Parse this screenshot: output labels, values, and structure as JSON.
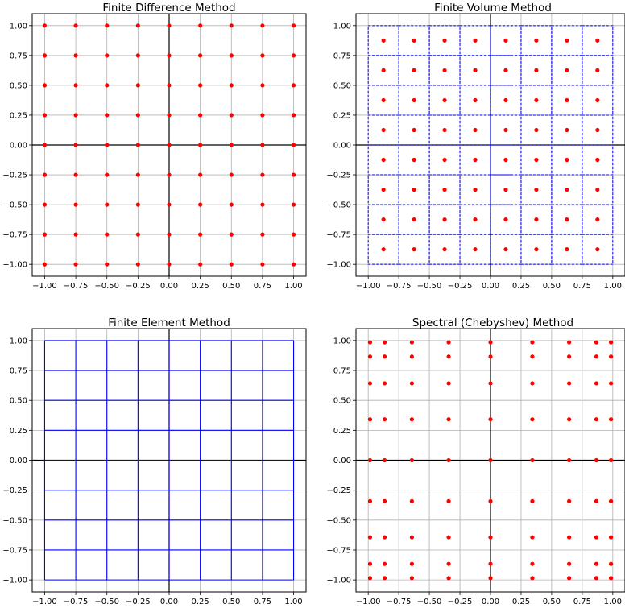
{
  "chart_data": [
    {
      "type": "scatter",
      "title": "Finite Difference Method",
      "xlim": [
        -1.1,
        1.1
      ],
      "ylim": [
        -1.1,
        1.1
      ],
      "xticks": [
        -1.0,
        -0.75,
        -0.5,
        -0.25,
        0.0,
        0.25,
        0.5,
        0.75,
        1.0
      ],
      "yticks": [
        -1.0,
        -0.75,
        -0.5,
        -0.25,
        0.0,
        0.25,
        0.5,
        0.75,
        1.0
      ],
      "xtick_labels": [
        "−1.00",
        "−0.75",
        "−0.50",
        "−0.25",
        "0.00",
        "0.25",
        "0.50",
        "0.75",
        "1.00"
      ],
      "ytick_labels": [
        "−1.00",
        "−0.75",
        "−0.50",
        "−0.25",
        "0.00",
        "0.25",
        "0.50",
        "0.75",
        "1.00"
      ],
      "grid": true,
      "axes_lines": true,
      "point_color": "#ff0000",
      "points_x": [
        -1.0,
        -0.75,
        -0.5,
        -0.25,
        0.0,
        0.25,
        0.5,
        0.75,
        1.0
      ],
      "points_y": [
        -1.0,
        -0.75,
        -0.5,
        -0.25,
        0.0,
        0.25,
        0.5,
        0.75,
        1.0
      ]
    },
    {
      "type": "scatter",
      "title": "Finite Volume Method",
      "xlim": [
        -1.1,
        1.1
      ],
      "ylim": [
        -1.1,
        1.1
      ],
      "xticks": [
        -1.0,
        -0.75,
        -0.5,
        -0.25,
        0.0,
        0.25,
        0.5,
        0.75,
        1.0
      ],
      "yticks": [
        -1.0,
        -0.75,
        -0.5,
        -0.25,
        0.0,
        0.25,
        0.5,
        0.75,
        1.0
      ],
      "xtick_labels": [
        "−1.00",
        "−0.75",
        "−0.50",
        "−0.25",
        "0.00",
        "0.25",
        "0.50",
        "0.75",
        "1.00"
      ],
      "ytick_labels": [
        "−1.00",
        "−0.75",
        "−0.50",
        "−0.25",
        "0.00",
        "0.25",
        "0.50",
        "0.75",
        "1.00"
      ],
      "grid": true,
      "axes_lines": true,
      "point_color": "#ff0000",
      "points_x": [
        -0.875,
        -0.625,
        -0.375,
        -0.125,
        0.125,
        0.375,
        0.625,
        0.875
      ],
      "points_y": [
        -0.875,
        -0.625,
        -0.375,
        -0.125,
        0.125,
        0.375,
        0.625,
        0.875
      ],
      "cell_edges": [
        -1.0,
        -0.75,
        -0.5,
        -0.25,
        0.0,
        0.25,
        0.5,
        0.75,
        1.0
      ],
      "cell_color": "#0000ff",
      "cell_style": "dashed"
    },
    {
      "type": "mesh",
      "title": "Finite Element Method",
      "xlim": [
        -1.1,
        1.1
      ],
      "ylim": [
        -1.1,
        1.1
      ],
      "xticks": [
        -1.0,
        -0.75,
        -0.5,
        -0.25,
        0.0,
        0.25,
        0.5,
        0.75,
        1.0
      ],
      "yticks": [
        -1.0,
        -0.75,
        -0.5,
        -0.25,
        0.0,
        0.25,
        0.5,
        0.75,
        1.0
      ],
      "xtick_labels": [
        "−1.00",
        "−0.75",
        "−0.50",
        "−0.25",
        "0.00",
        "0.25",
        "0.50",
        "0.75",
        "1.00"
      ],
      "ytick_labels": [
        "−1.00",
        "−0.75",
        "−0.50",
        "−0.25",
        "0.00",
        "0.25",
        "0.50",
        "0.75",
        "1.00"
      ],
      "grid": true,
      "axes_lines": true,
      "mesh_x": [
        -1.0,
        -0.75,
        -0.5,
        -0.25,
        0.0,
        0.25,
        0.5,
        0.75,
        1.0
      ],
      "mesh_y": [
        -1.0,
        -0.75,
        -0.5,
        -0.25,
        0.0,
        0.25,
        0.5,
        0.75,
        1.0
      ],
      "mesh_color": "#0000ff"
    },
    {
      "type": "scatter",
      "title": "Spectral (Chebyshev) Method",
      "xlim": [
        -1.1,
        1.1
      ],
      "ylim": [
        -1.1,
        1.1
      ],
      "xticks": [
        -1.0,
        -0.75,
        -0.5,
        -0.25,
        0.0,
        0.25,
        0.5,
        0.75,
        1.0
      ],
      "yticks": [
        -1.0,
        -0.75,
        -0.5,
        -0.25,
        0.0,
        0.25,
        0.5,
        0.75,
        1.0
      ],
      "xtick_labels": [
        "−1.00",
        "−0.75",
        "−0.50",
        "−0.25",
        "0.00",
        "0.25",
        "0.50",
        "0.75",
        "1.00"
      ],
      "ytick_labels": [
        "−1.00",
        "−0.75",
        "−0.50",
        "−0.25",
        "0.00",
        "0.25",
        "0.50",
        "0.75",
        "1.00"
      ],
      "grid": true,
      "axes_lines": true,
      "point_color": "#ff0000",
      "points_x": [
        -0.985,
        -0.866,
        -0.643,
        -0.342,
        0.0,
        0.342,
        0.643,
        0.866,
        0.985
      ],
      "points_y": [
        -0.985,
        -0.866,
        -0.643,
        -0.342,
        0.0,
        0.342,
        0.643,
        0.866,
        0.985
      ]
    }
  ]
}
